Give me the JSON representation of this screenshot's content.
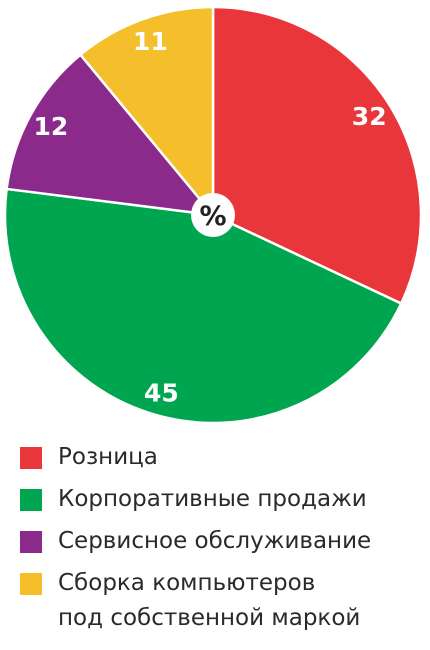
{
  "chart_data": {
    "type": "pie",
    "center_label": "%",
    "slices": [
      {
        "label": "Розница",
        "value": 32,
        "color": "#e8363a"
      },
      {
        "label": "Корпоративные продажи",
        "value": 45,
        "color": "#00a64f"
      },
      {
        "label": "Сервисное обслуживание",
        "value": 12,
        "color": "#8b2a8b"
      },
      {
        "label": "Сборка компьютеров\nпод собственной маркой",
        "value": 11,
        "color": "#f4bf2a"
      }
    ]
  }
}
